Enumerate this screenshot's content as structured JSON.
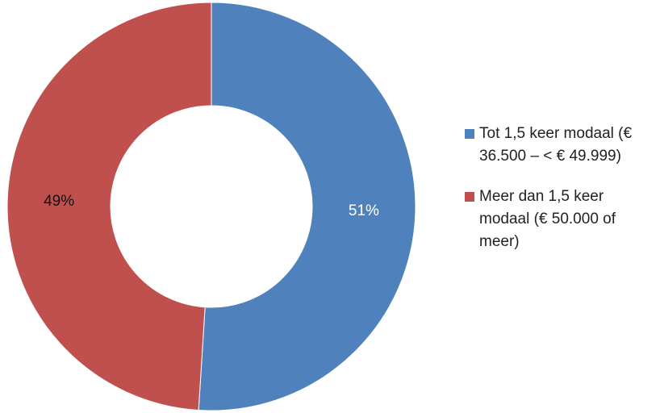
{
  "chart_data": {
    "type": "donut",
    "categories": [
      "Tot 1,5 keer modaal (€ 36.500 – < € 49.999)",
      "Meer dan 1,5 keer modaal (€ 50.000 of meer)"
    ],
    "values": [
      51,
      49
    ],
    "value_labels": [
      "51%",
      "49%"
    ],
    "colors": [
      "#4f81bd",
      "#c0504d"
    ],
    "legend": "right"
  }
}
